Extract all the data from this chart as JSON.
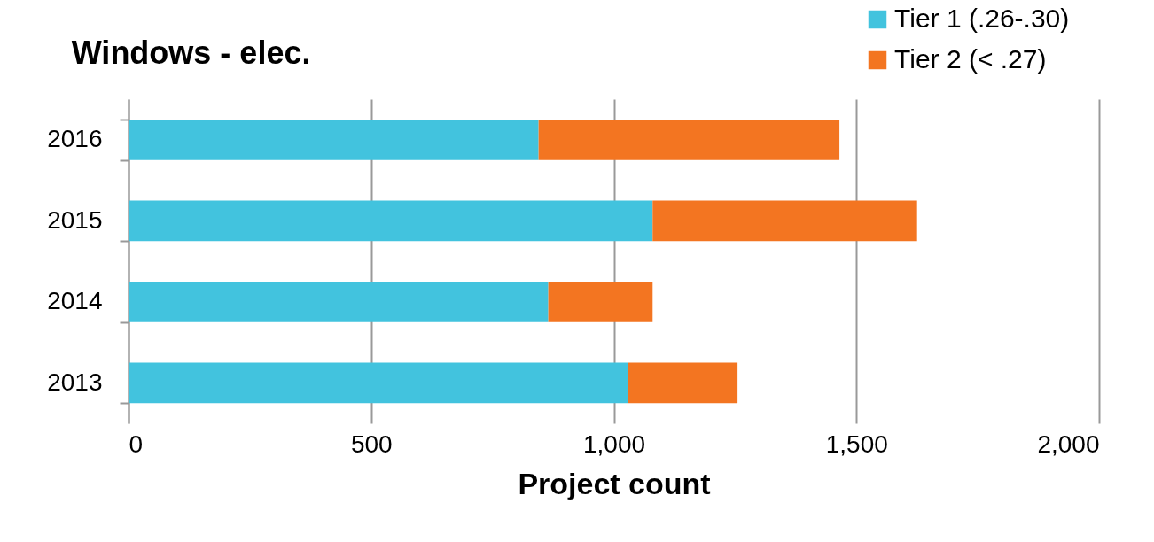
{
  "chart_data": {
    "type": "bar",
    "orientation": "horizontal",
    "stacked": true,
    "title": "Windows - elec.",
    "xlabel": "Project count",
    "categories": [
      "2016",
      "2015",
      "2014",
      "2013"
    ],
    "series": [
      {
        "name": "Tier 1 (.26-.30)",
        "color": "#42c3de",
        "values": [
          845,
          1080,
          865,
          1030
        ]
      },
      {
        "name": "Tier 2 (< .27)",
        "color": "#f37521",
        "values": [
          620,
          545,
          215,
          225
        ]
      }
    ],
    "xlim": [
      0,
      2000
    ],
    "xticks": [
      0,
      500,
      {
        "value": 1000,
        "label": "1,000"
      },
      {
        "value": 1500,
        "label": "1,500"
      },
      {
        "value": 2000,
        "label": "2,000"
      }
    ],
    "grid": "x",
    "legend": "top right"
  }
}
